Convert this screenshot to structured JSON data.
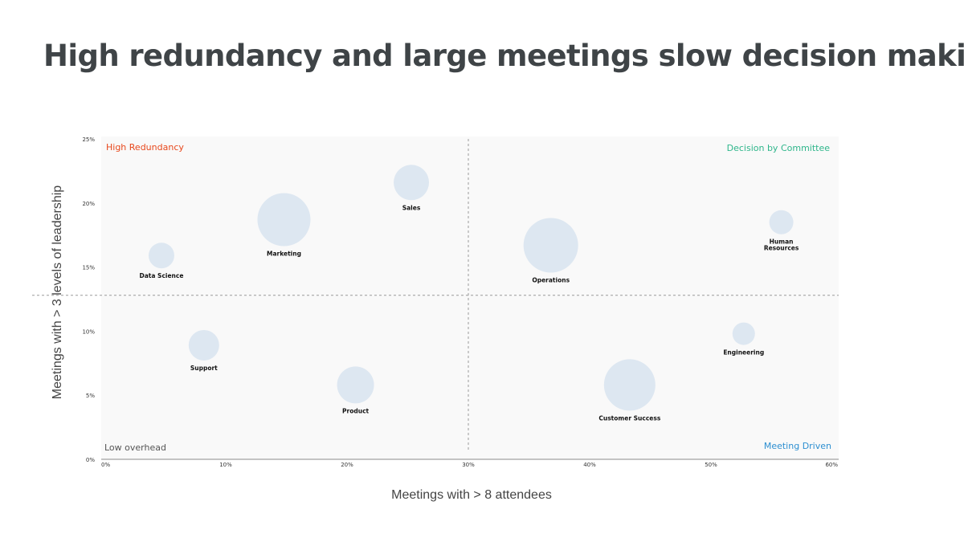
{
  "title": "High redundancy and large meetings slow decision making",
  "chart_data": {
    "type": "scatter",
    "xlabel": "Meetings with > 8 attendees",
    "ylabel": "Meetings with > 3 levels of leadership",
    "xlim": [
      0,
      60
    ],
    "ylim": [
      0,
      25
    ],
    "x_ticks": [
      "0%",
      "10%",
      "20%",
      "30%",
      "40%",
      "50%",
      "60%"
    ],
    "y_ticks": [
      "0%",
      "5%",
      "10%",
      "15%",
      "20%",
      "25%"
    ],
    "divider_x": 30,
    "divider_y": 12.8,
    "bubble_color": "#dde7f1",
    "quadrants": [
      {
        "label": "High Redundancy",
        "position": "top-left",
        "color": "#e8481c"
      },
      {
        "label": "Decision by Committee",
        "position": "top-right",
        "color": "#2fb68b"
      },
      {
        "label": "Low overhead",
        "position": "bottom-left",
        "color": "#555555"
      },
      {
        "label": "Meeting Driven",
        "position": "bottom-right",
        "color": "#2d8fd1"
      }
    ],
    "points": [
      {
        "label": [
          "Data Science"
        ],
        "x": 4.7,
        "y": 15.9,
        "size": 16
      },
      {
        "label": [
          "Marketing"
        ],
        "x": 14.8,
        "y": 18.7,
        "size": 33
      },
      {
        "label": [
          "Sales"
        ],
        "x": 25.3,
        "y": 21.6,
        "size": 22
      },
      {
        "label": [
          "Operations"
        ],
        "x": 36.8,
        "y": 16.7,
        "size": 34
      },
      {
        "label": [
          "Human",
          "Resources"
        ],
        "x": 55.8,
        "y": 18.5,
        "size": 15
      },
      {
        "label": [
          "Support"
        ],
        "x": 8.2,
        "y": 8.9,
        "size": 19
      },
      {
        "label": [
          "Product"
        ],
        "x": 20.7,
        "y": 5.8,
        "size": 23
      },
      {
        "label": [
          "Customer Success"
        ],
        "x": 43.3,
        "y": 5.8,
        "size": 32
      },
      {
        "label": [
          "Engineering"
        ],
        "x": 52.7,
        "y": 9.8,
        "size": 14
      }
    ]
  }
}
